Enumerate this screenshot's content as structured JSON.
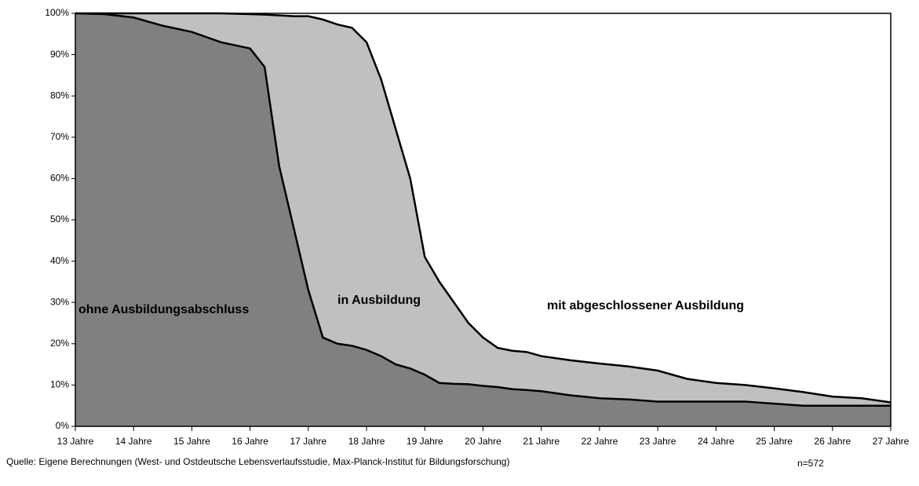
{
  "chart_data": {
    "type": "stacked-area",
    "x": [
      13,
      13.5,
      14,
      14.5,
      15,
      15.5,
      16,
      16.25,
      16.5,
      16.75,
      17,
      17.25,
      17.5,
      17.75,
      18,
      18.25,
      18.5,
      18.75,
      19,
      19.25,
      19.5,
      19.75,
      20,
      20.25,
      20.5,
      20.75,
      21,
      21.5,
      22,
      22.5,
      23,
      23.5,
      24,
      24.5,
      25,
      25.5,
      26,
      26.5,
      27
    ],
    "series": [
      {
        "name": "ohne Ausbildungsabschluss",
        "color": "#808080",
        "values": [
          100,
          99.8,
          99,
          97,
          95.5,
          93,
          91.5,
          87,
          63,
          48,
          33,
          21.5,
          20,
          19.5,
          18.5,
          17,
          15,
          14,
          12.5,
          10.5,
          10.3,
          10.2,
          9.8,
          9.5,
          9,
          8.8,
          8.5,
          7.5,
          6.8,
          6.5,
          6,
          6,
          6,
          6,
          5.5,
          5,
          5,
          5,
          5
        ]
      },
      {
        "name": "in Ausbildung",
        "color": "#c0c0c0",
        "values": [
          0,
          0.2,
          1,
          3,
          4.5,
          7,
          8.3,
          12.7,
          36.5,
          51.3,
          66.3,
          77,
          77.3,
          77,
          74.5,
          67,
          57,
          46,
          28.5,
          24.5,
          19.7,
          14.8,
          11.7,
          9.5,
          9.3,
          9.2,
          8.5,
          8.5,
          8.4,
          8,
          7.5,
          5.5,
          4.5,
          4,
          3.7,
          3.3,
          2.2,
          1.8,
          0.8
        ]
      },
      {
        "name": "mit abgeschlossener Ausbildung",
        "color": "#ffffff",
        "values": [
          0,
          0,
          0,
          0,
          0,
          0,
          0.2,
          0.3,
          0.5,
          0.7,
          0.7,
          1.5,
          2.7,
          3.5,
          7,
          16,
          28,
          40,
          59,
          65,
          70,
          75,
          78.5,
          81,
          81.7,
          82,
          83,
          84,
          84.8,
          85.5,
          86.5,
          88.5,
          89.5,
          90,
          90.8,
          91.7,
          92.8,
          93.2,
          94.2
        ]
      }
    ],
    "xlim": [
      13,
      27
    ],
    "xticks": [
      {
        "value": 13,
        "label": "13 Jahre"
      },
      {
        "value": 14,
        "label": "14 Jahre"
      },
      {
        "value": 15,
        "label": "15 Jahre"
      },
      {
        "value": 16,
        "label": "16 Jahre"
      },
      {
        "value": 17,
        "label": "17 Jahre"
      },
      {
        "value": 18,
        "label": "18 Jahre"
      },
      {
        "value": 19,
        "label": "19 Jahre"
      },
      {
        "value": 20,
        "label": "20 Jahre"
      },
      {
        "value": 21,
        "label": "21 Jahre"
      },
      {
        "value": 22,
        "label": "22 Jahre"
      },
      {
        "value": 23,
        "label": "23 Jahre"
      },
      {
        "value": 24,
        "label": "24 Jahre"
      },
      {
        "value": 25,
        "label": "25 Jahre"
      },
      {
        "value": 26,
        "label": "26 Jahre"
      },
      {
        "value": 27,
        "label": "27 Jahre"
      }
    ],
    "ylim": [
      0,
      100
    ],
    "yticks": [
      {
        "value": 0,
        "label": "0%"
      },
      {
        "value": 10,
        "label": "10%"
      },
      {
        "value": 20,
        "label": "20%"
      },
      {
        "value": 30,
        "label": "30%"
      },
      {
        "value": 40,
        "label": "40%"
      },
      {
        "value": 50,
        "label": "50%"
      },
      {
        "value": 60,
        "label": "60%"
      },
      {
        "value": 70,
        "label": "70%"
      },
      {
        "value": 80,
        "label": "80%"
      },
      {
        "value": 90,
        "label": "90%"
      },
      {
        "value": 100,
        "label": "100%"
      }
    ],
    "source": "Quelle: Eigene Berechnungen (West- und Ostdeutsche Lebensverlaufsstudie, Max-Planck-Institut für Bildungsforschung)",
    "note": "n=572"
  }
}
